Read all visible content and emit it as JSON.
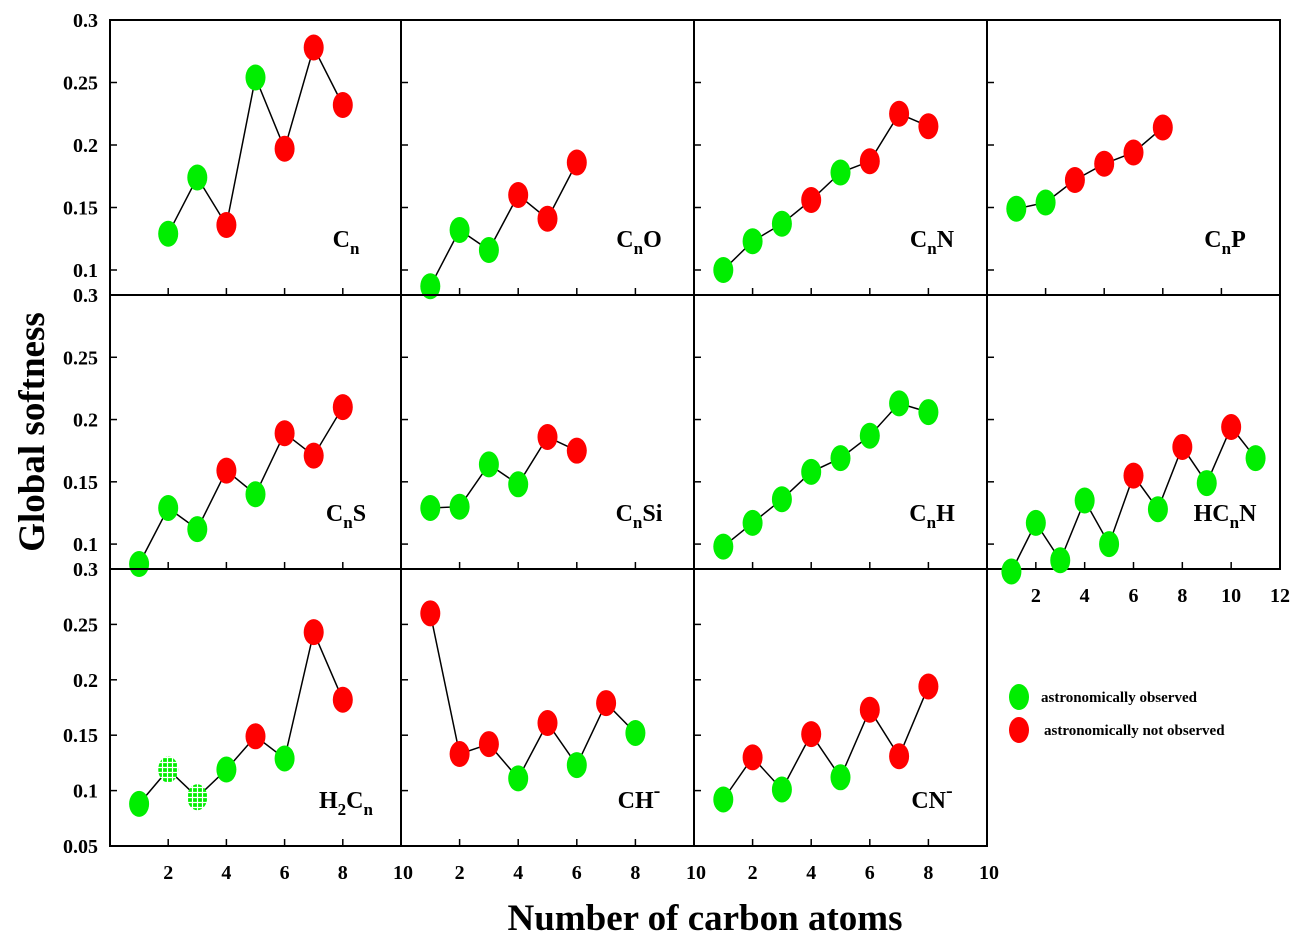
{
  "chart_data": {
    "type": "scatter",
    "ylabel": "Global softness",
    "xlabel": "Number of carbon atoms",
    "legend": {
      "placement": "bottom-right",
      "entries": [
        {
          "label": "astronomically observed",
          "color": "#00ee00"
        },
        {
          "label": "astronomically not  observed",
          "color": "#ff0000"
        }
      ]
    },
    "colors": {
      "observed": "#00ee00",
      "not_observed": "#ff0000",
      "observed_hatched": "#00ee00",
      "line": "#000000"
    },
    "panels": [
      {
        "label_main": "C",
        "label_sub": "n",
        "label_tail": "",
        "label_sup": "",
        "xlim": [
          0,
          10
        ],
        "ylim": [
          0.08,
          0.3
        ],
        "x_ticks": [
          "2",
          "4",
          "6",
          "8",
          "10"
        ],
        "y_ticks": [
          "0.1",
          "0.15",
          "0.2",
          "0.25",
          "0.3"
        ],
        "points": [
          {
            "x": 2,
            "y": 0.129,
            "obs": "observed"
          },
          {
            "x": 3,
            "y": 0.174,
            "obs": "observed"
          },
          {
            "x": 4,
            "y": 0.136,
            "obs": "not_observed"
          },
          {
            "x": 5,
            "y": 0.254,
            "obs": "observed"
          },
          {
            "x": 6,
            "y": 0.197,
            "obs": "not_observed"
          },
          {
            "x": 7,
            "y": 0.278,
            "obs": "not_observed"
          },
          {
            "x": 8,
            "y": 0.232,
            "obs": "not_observed"
          }
        ]
      },
      {
        "label_main": "C",
        "label_sub": "n",
        "label_tail": "O",
        "label_sup": "",
        "xlim": [
          0,
          10
        ],
        "ylim": [
          0.08,
          0.3
        ],
        "x_ticks": [
          "2",
          "4",
          "6",
          "8",
          "10"
        ],
        "y_ticks": [],
        "points": [
          {
            "x": 1,
            "y": 0.087,
            "obs": "observed"
          },
          {
            "x": 2,
            "y": 0.132,
            "obs": "observed"
          },
          {
            "x": 3,
            "y": 0.116,
            "obs": "observed"
          },
          {
            "x": 4,
            "y": 0.16,
            "obs": "not_observed"
          },
          {
            "x": 5,
            "y": 0.141,
            "obs": "not_observed"
          },
          {
            "x": 6,
            "y": 0.186,
            "obs": "not_observed"
          }
        ]
      },
      {
        "label_main": "C",
        "label_sub": "n",
        "label_tail": "N",
        "label_sup": "",
        "xlim": [
          0,
          10
        ],
        "ylim": [
          0.08,
          0.3
        ],
        "x_ticks": [
          "2",
          "4",
          "6",
          "8",
          "10"
        ],
        "y_ticks": [],
        "points": [
          {
            "x": 1,
            "y": 0.1,
            "obs": "observed"
          },
          {
            "x": 2,
            "y": 0.123,
            "obs": "observed"
          },
          {
            "x": 3,
            "y": 0.137,
            "obs": "observed"
          },
          {
            "x": 4,
            "y": 0.156,
            "obs": "not_observed"
          },
          {
            "x": 5,
            "y": 0.178,
            "obs": "observed"
          },
          {
            "x": 6,
            "y": 0.187,
            "obs": "not_observed"
          },
          {
            "x": 7,
            "y": 0.225,
            "obs": "not_observed"
          },
          {
            "x": 8,
            "y": 0.215,
            "obs": "not_observed"
          }
        ]
      },
      {
        "label_main": "C",
        "label_sub": "n",
        "label_tail": "P",
        "label_sup": "",
        "xlim": [
          0,
          10
        ],
        "ylim": [
          0.08,
          0.3
        ],
        "x_ticks": [
          "2",
          "4",
          "6",
          "8",
          "10"
        ],
        "y_ticks": [],
        "points": [
          {
            "x": 1,
            "y": 0.149,
            "obs": "observed"
          },
          {
            "x": 2,
            "y": 0.154,
            "obs": "observed"
          },
          {
            "x": 3,
            "y": 0.172,
            "obs": "not_observed"
          },
          {
            "x": 4,
            "y": 0.185,
            "obs": "not_observed"
          },
          {
            "x": 5,
            "y": 0.194,
            "obs": "not_observed"
          },
          {
            "x": 6,
            "y": 0.214,
            "obs": "not_observed"
          }
        ]
      },
      {
        "label_main": "C",
        "label_sub": "n",
        "label_tail": "S",
        "label_sup": "",
        "xlim": [
          0,
          10
        ],
        "ylim": [
          0.08,
          0.3
        ],
        "x_ticks": [
          "2",
          "4",
          "6",
          "8",
          "10"
        ],
        "y_ticks": [
          "0.1",
          "0.15",
          "0.2",
          "0.25",
          "0.3"
        ],
        "points": [
          {
            "x": 1,
            "y": 0.084,
            "obs": "observed"
          },
          {
            "x": 2,
            "y": 0.129,
            "obs": "observed"
          },
          {
            "x": 3,
            "y": 0.112,
            "obs": "observed"
          },
          {
            "x": 4,
            "y": 0.159,
            "obs": "not_observed"
          },
          {
            "x": 5,
            "y": 0.14,
            "obs": "observed"
          },
          {
            "x": 6,
            "y": 0.189,
            "obs": "not_observed"
          },
          {
            "x": 7,
            "y": 0.171,
            "obs": "not_observed"
          },
          {
            "x": 8,
            "y": 0.21,
            "obs": "not_observed"
          }
        ]
      },
      {
        "label_main": "C",
        "label_sub": "n",
        "label_tail": "Si",
        "label_sup": "",
        "xlim": [
          0,
          10
        ],
        "ylim": [
          0.08,
          0.3
        ],
        "x_ticks": [
          "2",
          "4",
          "6",
          "8",
          "10"
        ],
        "y_ticks": [],
        "points": [
          {
            "x": 1,
            "y": 0.129,
            "obs": "observed"
          },
          {
            "x": 2,
            "y": 0.13,
            "obs": "observed"
          },
          {
            "x": 3,
            "y": 0.164,
            "obs": "observed"
          },
          {
            "x": 4,
            "y": 0.148,
            "obs": "observed"
          },
          {
            "x": 5,
            "y": 0.186,
            "obs": "not_observed"
          },
          {
            "x": 6,
            "y": 0.175,
            "obs": "not_observed"
          }
        ]
      },
      {
        "label_main": "C",
        "label_sub": "n",
        "label_tail": "H",
        "label_sup": "",
        "xlim": [
          0,
          10
        ],
        "ylim": [
          0.08,
          0.3
        ],
        "x_ticks": [
          "2",
          "4",
          "6",
          "8",
          "10"
        ],
        "y_ticks": [],
        "points": [
          {
            "x": 1,
            "y": 0.098,
            "obs": "observed"
          },
          {
            "x": 2,
            "y": 0.117,
            "obs": "observed"
          },
          {
            "x": 3,
            "y": 0.136,
            "obs": "observed"
          },
          {
            "x": 4,
            "y": 0.158,
            "obs": "observed"
          },
          {
            "x": 5,
            "y": 0.169,
            "obs": "observed"
          },
          {
            "x": 6,
            "y": 0.187,
            "obs": "observed"
          },
          {
            "x": 7,
            "y": 0.213,
            "obs": "observed"
          },
          {
            "x": 8,
            "y": 0.206,
            "obs": "observed"
          }
        ]
      },
      {
        "label_main": "HC",
        "label_sub": "n",
        "label_tail": "N",
        "label_sup": "",
        "xlim": [
          0,
          12
        ],
        "ylim": [
          0.08,
          0.3
        ],
        "x_ticks": [
          "2",
          "4",
          "6",
          "8",
          "10",
          "12"
        ],
        "y_ticks": [],
        "points": [
          {
            "x": 1,
            "y": 0.078,
            "obs": "observed"
          },
          {
            "x": 2,
            "y": 0.117,
            "obs": "observed"
          },
          {
            "x": 3,
            "y": 0.087,
            "obs": "observed"
          },
          {
            "x": 4,
            "y": 0.135,
            "obs": "observed"
          },
          {
            "x": 5,
            "y": 0.1,
            "obs": "observed"
          },
          {
            "x": 6,
            "y": 0.155,
            "obs": "not_observed"
          },
          {
            "x": 7,
            "y": 0.128,
            "obs": "observed"
          },
          {
            "x": 8,
            "y": 0.178,
            "obs": "not_observed"
          },
          {
            "x": 9,
            "y": 0.149,
            "obs": "observed"
          },
          {
            "x": 10,
            "y": 0.194,
            "obs": "not_observed"
          },
          {
            "x": 11,
            "y": 0.169,
            "obs": "observed"
          }
        ]
      },
      {
        "label_main": "H",
        "label_sub": "2",
        "label_tail": "C",
        "label_sub2": "n",
        "label_sup": "",
        "xlim": [
          0,
          10
        ],
        "ylim": [
          0.05,
          0.3
        ],
        "x_ticks": [
          "2",
          "4",
          "6",
          "8",
          "10"
        ],
        "y_ticks": [
          "0.05",
          "0.1",
          "0.15",
          "0.2",
          "0.25",
          "0.3"
        ],
        "points": [
          {
            "x": 1,
            "y": 0.088,
            "obs": "observed"
          },
          {
            "x": 2,
            "y": 0.119,
            "obs": "observed_hatched"
          },
          {
            "x": 3,
            "y": 0.094,
            "obs": "observed_hatched"
          },
          {
            "x": 4,
            "y": 0.119,
            "obs": "observed"
          },
          {
            "x": 5,
            "y": 0.149,
            "obs": "not_observed"
          },
          {
            "x": 6,
            "y": 0.129,
            "obs": "observed"
          },
          {
            "x": 7,
            "y": 0.243,
            "obs": "not_observed"
          },
          {
            "x": 8,
            "y": 0.182,
            "obs": "not_observed"
          }
        ]
      },
      {
        "label_main": "CH",
        "label_sub": "",
        "label_tail": "",
        "label_sup": "-",
        "xlim": [
          0,
          10
        ],
        "ylim": [
          0.05,
          0.3
        ],
        "x_ticks": [
          "2",
          "4",
          "6",
          "8",
          "10"
        ],
        "y_ticks": [],
        "points": [
          {
            "x": 1,
            "y": 0.26,
            "obs": "not_observed"
          },
          {
            "x": 2,
            "y": 0.133,
            "obs": "not_observed"
          },
          {
            "x": 3,
            "y": 0.142,
            "obs": "not_observed"
          },
          {
            "x": 4,
            "y": 0.111,
            "obs": "observed"
          },
          {
            "x": 5,
            "y": 0.161,
            "obs": "not_observed"
          },
          {
            "x": 6,
            "y": 0.123,
            "obs": "observed"
          },
          {
            "x": 7,
            "y": 0.179,
            "obs": "not_observed"
          },
          {
            "x": 8,
            "y": 0.152,
            "obs": "observed"
          }
        ]
      },
      {
        "label_main": "CN",
        "label_sub": "",
        "label_tail": "",
        "label_sup": "-",
        "xlim": [
          0,
          10
        ],
        "ylim": [
          0.05,
          0.3
        ],
        "x_ticks": [
          "2",
          "4",
          "6",
          "8",
          "10"
        ],
        "y_ticks": [],
        "points": [
          {
            "x": 1,
            "y": 0.092,
            "obs": "observed"
          },
          {
            "x": 2,
            "y": 0.13,
            "obs": "not_observed"
          },
          {
            "x": 3,
            "y": 0.101,
            "obs": "observed"
          },
          {
            "x": 4,
            "y": 0.151,
            "obs": "not_observed"
          },
          {
            "x": 5,
            "y": 0.112,
            "obs": "observed"
          },
          {
            "x": 6,
            "y": 0.173,
            "obs": "not_observed"
          },
          {
            "x": 7,
            "y": 0.131,
            "obs": "not_observed"
          },
          {
            "x": 8,
            "y": 0.194,
            "obs": "not_observed"
          }
        ]
      }
    ]
  }
}
